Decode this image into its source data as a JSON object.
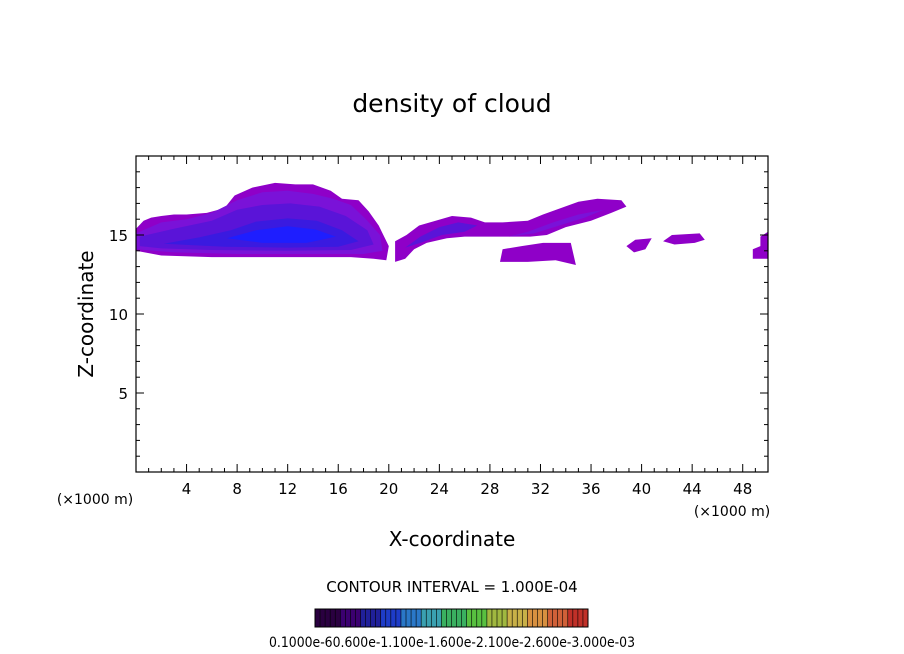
{
  "chart_data": {
    "type": "heatmap",
    "title": "density of cloud",
    "xlabel": "X-coordinate",
    "ylabel": "Z-coordinate",
    "x_unit": "(×1000 m)",
    "y_unit": "(×1000 m)",
    "xlim": [
      0,
      50
    ],
    "ylim": [
      0,
      20
    ],
    "x_ticks": [
      4,
      8,
      12,
      16,
      20,
      24,
      28,
      32,
      36,
      40,
      44,
      48
    ],
    "y_ticks": [
      5,
      10,
      15
    ],
    "contour_interval": "CONTOUR INTERVAL = 1.000E-04",
    "colorbar_label_text": "0.1000e-60.600e-1.100e-1.600e-2.100e-2.600e-3.000e-03",
    "colorbar_colors": [
      "#2a0040",
      "#3b0070",
      "#20209a",
      "#1e3cc8",
      "#2a78c8",
      "#3aa0b0",
      "#3ab060",
      "#58c040",
      "#a0b840",
      "#c8b048",
      "#d89040",
      "#d06038",
      "#c03028"
    ],
    "cloud_colors": {
      "edge": "#8f00c8",
      "low": "#7a12d8",
      "mid": "#5a14d8",
      "high": "#3a1ae0",
      "core": "#1e1eff"
    },
    "regions": [
      {
        "level": "edge",
        "points": [
          [
            0,
            14
          ],
          [
            0,
            15.4
          ],
          [
            0.6,
            15.9
          ],
          [
            1.2,
            16.1
          ],
          [
            2,
            16.2
          ],
          [
            3,
            16.3
          ],
          [
            4,
            16.3
          ],
          [
            5.6,
            16.4
          ],
          [
            7,
            16.7
          ],
          [
            7.8,
            17.5
          ],
          [
            9.2,
            18
          ],
          [
            11,
            18.3
          ],
          [
            12.6,
            18.2
          ],
          [
            14,
            18.2
          ],
          [
            15.4,
            17.8
          ],
          [
            16.3,
            17.3
          ],
          [
            17.6,
            17.2
          ],
          [
            18.4,
            16.5
          ],
          [
            19.2,
            15.6
          ],
          [
            20,
            14.3
          ],
          [
            19.8,
            13.4
          ],
          [
            18.8,
            13.5
          ],
          [
            17,
            13.6
          ],
          [
            13,
            13.6
          ],
          [
            6,
            13.6
          ],
          [
            2,
            13.7
          ]
        ]
      },
      {
        "level": "low",
        "points": [
          [
            0,
            14.1
          ],
          [
            0,
            15.1
          ],
          [
            2,
            15.8
          ],
          [
            4,
            16
          ],
          [
            6,
            16.4
          ],
          [
            8,
            17.2
          ],
          [
            10,
            17.7
          ],
          [
            12,
            17.8
          ],
          [
            14,
            17.6
          ],
          [
            15.6,
            17.3
          ],
          [
            17,
            16.9
          ],
          [
            18.2,
            16
          ],
          [
            19.3,
            15
          ],
          [
            19.5,
            14
          ],
          [
            18,
            13.8
          ],
          [
            14,
            13.8
          ],
          [
            8,
            13.8
          ],
          [
            3,
            13.9
          ]
        ]
      },
      {
        "level": "mid",
        "points": [
          [
            0.3,
            14.3
          ],
          [
            0.3,
            14.9
          ],
          [
            3,
            15.4
          ],
          [
            6,
            15.9
          ],
          [
            8,
            16.6
          ],
          [
            10,
            16.9
          ],
          [
            12.2,
            17
          ],
          [
            14.5,
            16.8
          ],
          [
            16.6,
            16.2
          ],
          [
            18.3,
            15.3
          ],
          [
            18.8,
            14.4
          ],
          [
            17,
            14.05
          ],
          [
            12,
            14
          ],
          [
            6,
            14.05
          ],
          [
            2,
            14.15
          ]
        ]
      },
      {
        "level": "high",
        "points": [
          [
            2.2,
            14.45
          ],
          [
            5,
            14.85
          ],
          [
            7.5,
            15.3
          ],
          [
            9.5,
            15.85
          ],
          [
            12,
            16.05
          ],
          [
            14.3,
            15.9
          ],
          [
            16.3,
            15.3
          ],
          [
            17.6,
            14.6
          ],
          [
            16,
            14.25
          ],
          [
            12,
            14.2
          ],
          [
            7,
            14.25
          ]
        ]
      },
      {
        "level": "core",
        "points": [
          [
            7.2,
            14.8
          ],
          [
            9.5,
            15.3
          ],
          [
            12,
            15.55
          ],
          [
            14.2,
            15.35
          ],
          [
            15.8,
            14.9
          ],
          [
            13.5,
            14.5
          ],
          [
            10,
            14.5
          ]
        ]
      },
      {
        "level": "edge",
        "points": [
          [
            20.5,
            13.3
          ],
          [
            20.5,
            14.6
          ],
          [
            21.4,
            15
          ],
          [
            22.4,
            15.6
          ],
          [
            23.7,
            15.9
          ],
          [
            25,
            16.2
          ],
          [
            26.5,
            16.1
          ],
          [
            27.6,
            15.8
          ],
          [
            29,
            15.8
          ],
          [
            31,
            15.9
          ],
          [
            32.2,
            16.3
          ],
          [
            33.6,
            16.7
          ],
          [
            35,
            17.1
          ],
          [
            36.5,
            17.3
          ],
          [
            38.4,
            17.2
          ],
          [
            38.8,
            16.8
          ],
          [
            37.6,
            16.4
          ],
          [
            36,
            15.9
          ],
          [
            34,
            15.5
          ],
          [
            32.5,
            15
          ],
          [
            31.2,
            14.9
          ],
          [
            29,
            14.9
          ],
          [
            27.4,
            14.9
          ],
          [
            26,
            14.9
          ],
          [
            24.6,
            14.8
          ],
          [
            23,
            14.5
          ],
          [
            22,
            14.1
          ],
          [
            21.3,
            13.5
          ]
        ]
      },
      {
        "level": "mid",
        "points": [
          [
            21.3,
            14.2
          ],
          [
            22.5,
            14.9
          ],
          [
            24,
            15.5
          ],
          [
            25.5,
            15.8
          ],
          [
            27,
            15.6
          ],
          [
            26,
            15.2
          ],
          [
            24.2,
            15
          ],
          [
            22.5,
            14.5
          ]
        ]
      },
      {
        "level": "low",
        "points": [
          [
            29.5,
            14.9
          ],
          [
            31,
            15.2
          ],
          [
            33,
            15.8
          ],
          [
            35,
            16.3
          ],
          [
            37,
            16.6
          ],
          [
            35.5,
            16.1
          ],
          [
            33.5,
            15.6
          ],
          [
            31.5,
            15.1
          ]
        ]
      },
      {
        "level": "edge",
        "points": [
          [
            28.8,
            13.3
          ],
          [
            29,
            14.1
          ],
          [
            30.5,
            14.3
          ],
          [
            32.2,
            14.5
          ],
          [
            34.4,
            14.5
          ],
          [
            34.8,
            13.1
          ],
          [
            33.2,
            13.4
          ],
          [
            31,
            13.3
          ]
        ]
      },
      {
        "level": "edge",
        "points": [
          [
            38.8,
            14.3
          ],
          [
            39.5,
            14.7
          ],
          [
            40.8,
            14.8
          ],
          [
            40.3,
            14.1
          ],
          [
            39.4,
            13.9
          ]
        ]
      },
      {
        "level": "edge",
        "points": [
          [
            41.7,
            14.6
          ],
          [
            42.4,
            15
          ],
          [
            44.6,
            15.1
          ],
          [
            45,
            14.7
          ],
          [
            44.2,
            14.5
          ],
          [
            42.6,
            14.4
          ]
        ]
      },
      {
        "level": "edge",
        "points": [
          [
            48.8,
            13.5
          ],
          [
            48.8,
            14.1
          ],
          [
            49.4,
            14.3
          ],
          [
            49.4,
            14.9
          ],
          [
            50,
            15.2
          ],
          [
            50,
            13.5
          ]
        ]
      }
    ]
  }
}
